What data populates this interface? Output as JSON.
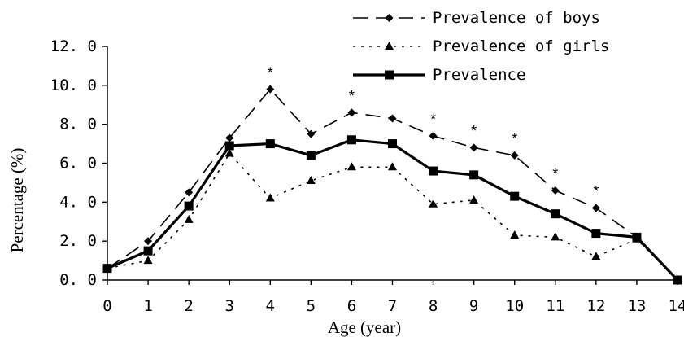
{
  "chart_data": {
    "type": "line",
    "title": "",
    "xlabel": "Age (year)",
    "ylabel": "Percentage (%)",
    "x": [
      0,
      1,
      2,
      3,
      4,
      5,
      6,
      7,
      8,
      9,
      10,
      11,
      12,
      13,
      14
    ],
    "x_ticks": [
      "0",
      "1",
      "2",
      "3",
      "4",
      "5",
      "6",
      "7",
      "8",
      "9",
      "10",
      "11",
      "12",
      "13",
      "14"
    ],
    "xlim": [
      0,
      14
    ],
    "ylim": [
      0,
      12
    ],
    "y_ticks": [
      "0. 0",
      "2. 0",
      "4. 0",
      "6. 0",
      "8. 0",
      "10. 0",
      "12. 0"
    ],
    "grid": false,
    "legend_position": "top-right",
    "series": [
      {
        "name": "Prevalence of boys",
        "marker": "diamond",
        "line_style": "dashed",
        "color": "#000000",
        "values": [
          0.6,
          2.0,
          4.5,
          7.3,
          9.8,
          7.5,
          8.6,
          8.3,
          7.4,
          6.8,
          6.4,
          4.6,
          3.7,
          2.2,
          0.0
        ]
      },
      {
        "name": "Prevalence of girls",
        "marker": "triangle",
        "line_style": "dotted",
        "color": "#000000",
        "values": [
          0.6,
          1.0,
          3.1,
          6.5,
          4.2,
          5.1,
          5.8,
          5.8,
          3.9,
          4.1,
          2.3,
          2.2,
          1.2,
          2.1,
          0.0
        ]
      },
      {
        "name": "Prevalence",
        "marker": "square",
        "line_style": "solid",
        "color": "#000000",
        "values": [
          0.6,
          1.5,
          3.8,
          6.9,
          7.0,
          6.4,
          7.2,
          7.0,
          5.6,
          5.4,
          4.3,
          3.4,
          2.4,
          2.2,
          0.0
        ]
      }
    ],
    "annotations": [
      {
        "x": 4,
        "y": 10.4,
        "text": "*"
      },
      {
        "x": 6,
        "y": 9.2,
        "text": "*"
      },
      {
        "x": 8,
        "y": 8.0,
        "text": "*"
      },
      {
        "x": 9,
        "y": 7.4,
        "text": "*"
      },
      {
        "x": 10,
        "y": 7.0,
        "text": "*"
      },
      {
        "x": 11,
        "y": 5.2,
        "text": "*"
      },
      {
        "x": 12,
        "y": 4.3,
        "text": "*"
      }
    ]
  }
}
